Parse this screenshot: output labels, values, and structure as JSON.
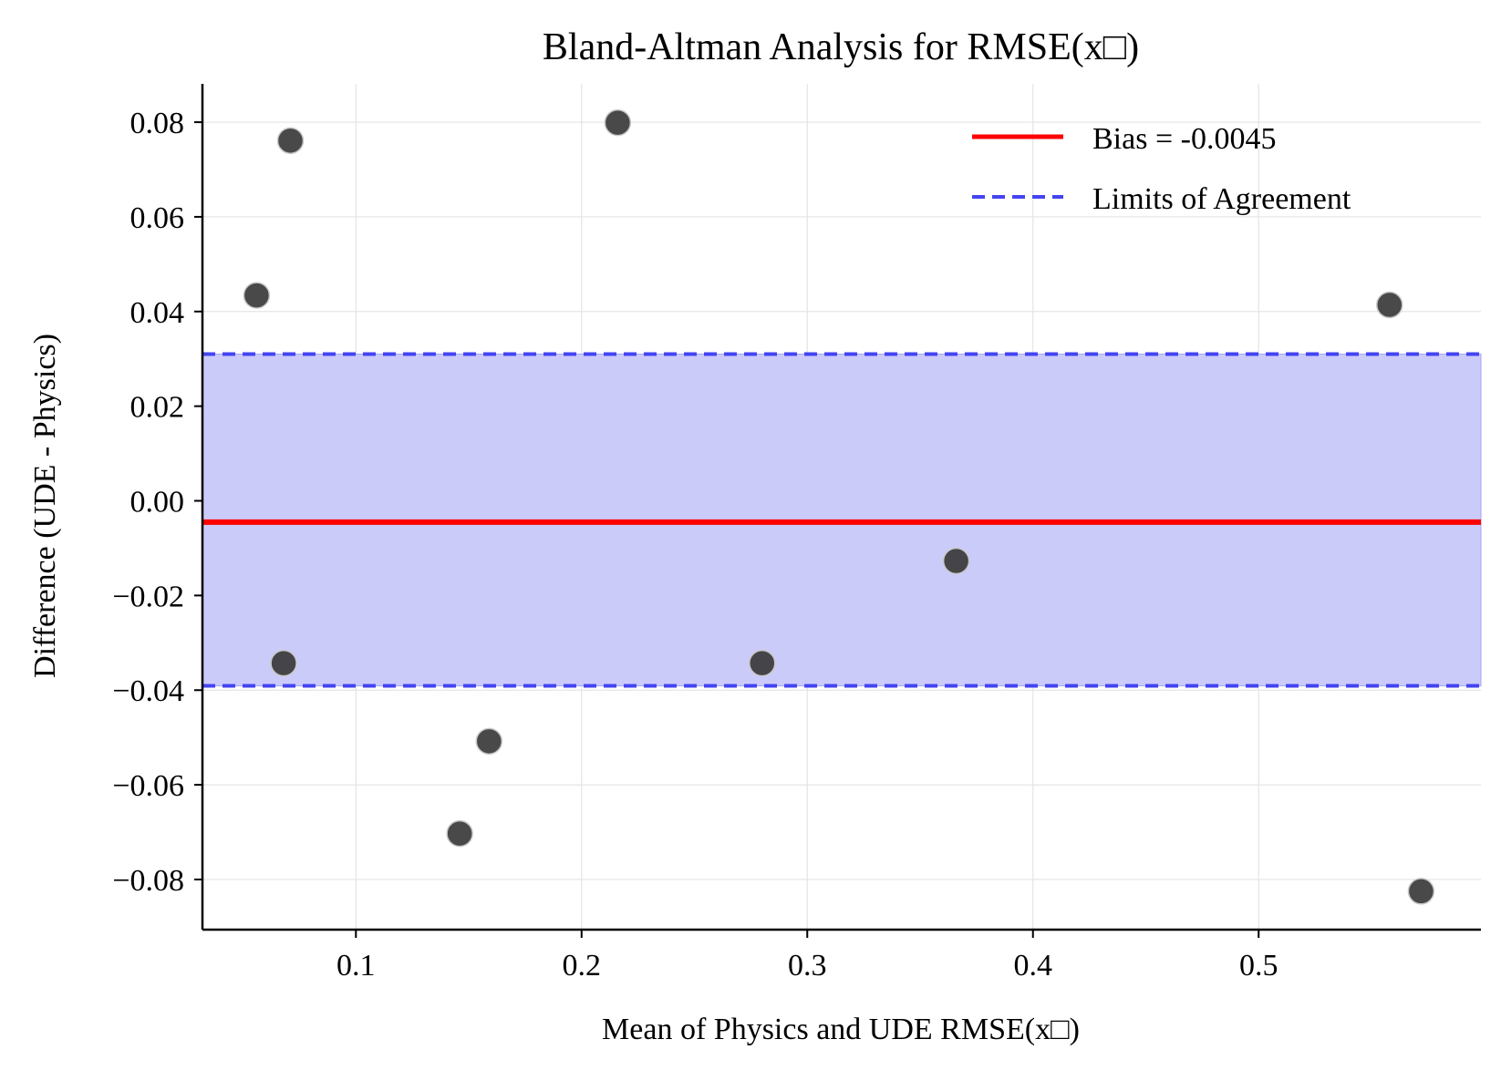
{
  "chart_data": {
    "type": "scatter",
    "title": "Bland-Altman Analysis for RMSE(x□)",
    "xlabel": "Mean of Physics and UDE RMSE(x□)",
    "ylabel": "Difference (UDE - Physics)",
    "xlim": [
      0.032,
      0.5985
    ],
    "ylim": [
      -0.0906,
      0.0881
    ],
    "x_ticks": [
      0.1,
      0.2,
      0.3,
      0.4,
      0.5
    ],
    "x_tick_labels": [
      "0.1",
      "0.2",
      "0.3",
      "0.4",
      "0.5"
    ],
    "y_ticks": [
      0.08,
      0.06,
      0.04,
      0.02,
      0.0,
      -0.02,
      -0.04,
      -0.06,
      -0.08
    ],
    "y_tick_labels": [
      "0.08",
      "0.06",
      "0.04",
      "0.02",
      "0.00",
      "−0.02",
      "−0.04",
      "−0.06",
      "−0.08"
    ],
    "grid": true,
    "legend_position": "top-right",
    "bias": -0.0045,
    "limits_of_agreement": [
      -0.0391,
      0.031
    ],
    "points": [
      {
        "x": 0.056,
        "y": 0.0434
      },
      {
        "x": 0.068,
        "y": -0.0343
      },
      {
        "x": 0.071,
        "y": 0.0761
      },
      {
        "x": 0.146,
        "y": -0.0703
      },
      {
        "x": 0.159,
        "y": -0.0508
      },
      {
        "x": 0.216,
        "y": 0.0799
      },
      {
        "x": 0.28,
        "y": -0.0343
      },
      {
        "x": 0.366,
        "y": -0.0127
      },
      {
        "x": 0.558,
        "y": 0.0414
      },
      {
        "x": 0.572,
        "y": -0.0825
      }
    ],
    "legend": [
      {
        "label": "Bias = -0.0045",
        "style": "solid",
        "color": "#ff0000"
      },
      {
        "label": "Limits of Agreement",
        "style": "dashed",
        "color": "#3b3bf5"
      }
    ],
    "colors": {
      "bias_line": "#ff0000",
      "loa_line": "#4444f2",
      "loa_band": "#cbcbfa",
      "point": "#3a3a3a",
      "point_edge": "#c8c8c8"
    }
  }
}
